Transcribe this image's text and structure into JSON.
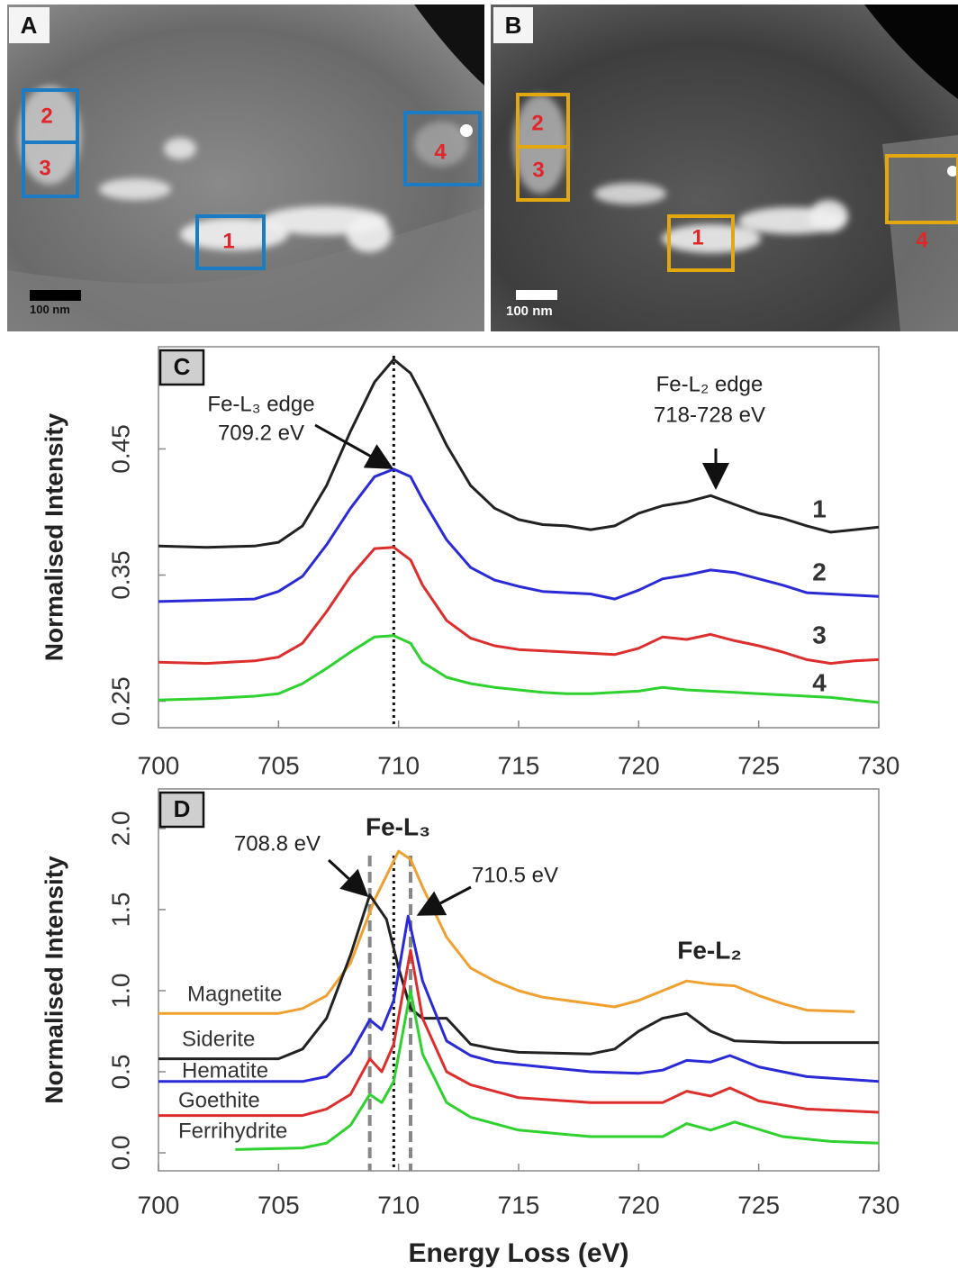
{
  "panels": [
    {
      "label": "A",
      "box_labels": [
        "2",
        "3",
        "4",
        "1"
      ],
      "scale_bar": "100 nm",
      "box_color": "#1b7cc4"
    },
    {
      "label": "B",
      "box_labels": [
        "2",
        "3",
        "4",
        "1"
      ],
      "scale_bar": "100 nm",
      "box_color": "#e3a70f"
    }
  ],
  "chart_data": [
    {
      "type": "line",
      "panel": "C",
      "ylabel": "Normalised Intensity",
      "x": [
        700,
        702,
        704,
        705,
        706,
        707,
        708,
        709,
        709.8,
        710.5,
        711,
        712,
        713,
        714,
        715,
        716,
        717,
        718,
        719,
        720,
        721,
        722,
        723,
        724,
        725,
        726,
        727,
        728,
        729,
        730
      ],
      "series": [
        {
          "name": "1",
          "color": "#222222",
          "values": [
            0.373,
            0.372,
            0.373,
            0.376,
            0.389,
            0.421,
            0.464,
            0.503,
            0.521,
            0.51,
            0.492,
            0.453,
            0.421,
            0.403,
            0.394,
            0.39,
            0.389,
            0.386,
            0.389,
            0.399,
            0.405,
            0.408,
            0.413,
            0.406,
            0.399,
            0.395,
            0.389,
            0.384,
            0.386,
            0.388
          ]
        },
        {
          "name": "2",
          "color": "#2a2ad6",
          "values": [
            0.329,
            0.33,
            0.331,
            0.337,
            0.349,
            0.374,
            0.403,
            0.428,
            0.434,
            0.428,
            0.41,
            0.378,
            0.356,
            0.346,
            0.341,
            0.337,
            0.336,
            0.335,
            0.331,
            0.338,
            0.347,
            0.35,
            0.354,
            0.352,
            0.347,
            0.342,
            0.336,
            0.335,
            0.334,
            0.333
          ]
        },
        {
          "name": "3",
          "color": "#dd2e2e",
          "values": [
            0.281,
            0.28,
            0.282,
            0.285,
            0.296,
            0.321,
            0.349,
            0.371,
            0.372,
            0.362,
            0.342,
            0.314,
            0.3,
            0.294,
            0.291,
            0.29,
            0.289,
            0.288,
            0.287,
            0.292,
            0.301,
            0.299,
            0.303,
            0.298,
            0.294,
            0.289,
            0.283,
            0.28,
            0.282,
            0.283
          ]
        },
        {
          "name": "4",
          "color": "#2ed12e",
          "values": [
            0.251,
            0.252,
            0.254,
            0.256,
            0.264,
            0.276,
            0.289,
            0.301,
            0.302,
            0.296,
            0.281,
            0.269,
            0.264,
            0.261,
            0.259,
            0.257,
            0.256,
            0.256,
            0.257,
            0.258,
            0.261,
            0.259,
            0.258,
            0.257,
            0.256,
            0.255,
            0.254,
            0.253,
            0.251,
            0.249
          ]
        }
      ],
      "xlim": [
        700,
        730
      ],
      "ylim": [
        0.229,
        0.531
      ],
      "xticks": [
        700,
        705,
        710,
        715,
        720,
        725,
        730
      ],
      "yticks": [
        0.25,
        0.35,
        0.45
      ],
      "annotations": [
        "Fe-L₃ edge",
        "709.2  eV",
        "Fe-L₂ edge",
        "718-728  eV"
      ],
      "reference_lines": [
        {
          "value": 709.8,
          "style": "dotted"
        }
      ]
    },
    {
      "type": "line",
      "panel": "D",
      "ylabel": "Normalised Intensity",
      "xlabel": "Energy Loss (eV)",
      "series": [
        {
          "name": "Magnetite",
          "color": "#f0a030",
          "x": [
            700,
            705,
            706,
            707,
            708,
            709,
            710,
            710.5,
            711,
            712,
            713,
            714,
            715,
            716,
            718,
            719,
            720,
            721,
            722,
            723,
            724,
            725,
            726,
            727,
            729
          ],
          "values": [
            0.86,
            0.86,
            0.89,
            0.97,
            1.17,
            1.56,
            1.86,
            1.81,
            1.64,
            1.33,
            1.14,
            1.06,
            1.0,
            0.96,
            0.92,
            0.9,
            0.94,
            1.0,
            1.06,
            1.04,
            1.03,
            0.97,
            0.92,
            0.88,
            0.87
          ]
        },
        {
          "name": "Siderite",
          "color": "#222222",
          "x": [
            700,
            705,
            706,
            707,
            708,
            708.8,
            709.5,
            710,
            710.5,
            711,
            712,
            713,
            714,
            715,
            718,
            719,
            720,
            721,
            722,
            723,
            724,
            726,
            728,
            730
          ],
          "values": [
            0.58,
            0.58,
            0.64,
            0.83,
            1.22,
            1.59,
            1.44,
            1.14,
            0.89,
            0.83,
            0.83,
            0.67,
            0.64,
            0.62,
            0.61,
            0.64,
            0.75,
            0.83,
            0.86,
            0.75,
            0.69,
            0.68,
            0.68,
            0.68
          ]
        },
        {
          "name": "Hematite",
          "color": "#2a2ad6",
          "x": [
            700,
            706,
            707,
            708,
            708.8,
            709.3,
            709.8,
            710.4,
            711,
            712,
            713,
            714,
            716,
            718,
            720,
            721,
            722,
            723,
            723.8,
            725,
            727,
            730
          ],
          "values": [
            0.44,
            0.44,
            0.47,
            0.61,
            0.82,
            0.76,
            0.94,
            1.46,
            1.06,
            0.69,
            0.6,
            0.56,
            0.53,
            0.5,
            0.49,
            0.51,
            0.57,
            0.56,
            0.6,
            0.53,
            0.47,
            0.44
          ]
        },
        {
          "name": "Goethite",
          "color": "#dd2e2e",
          "x": [
            700,
            706,
            707,
            708,
            708.8,
            709.3,
            709.8,
            710.5,
            711,
            712,
            713,
            715,
            718,
            721,
            722,
            723,
            723.8,
            725,
            727,
            730
          ],
          "values": [
            0.23,
            0.23,
            0.27,
            0.36,
            0.58,
            0.5,
            0.67,
            1.25,
            0.83,
            0.5,
            0.42,
            0.34,
            0.31,
            0.31,
            0.38,
            0.35,
            0.4,
            0.32,
            0.27,
            0.25
          ]
        },
        {
          "name": "Ferrihydrite",
          "color": "#2ed12e",
          "x": [
            703.2,
            706,
            707,
            708,
            708.8,
            709.3,
            709.8,
            710.5,
            711,
            712,
            713,
            715,
            718,
            721,
            722,
            723,
            724,
            726,
            728,
            730
          ],
          "values": [
            0.02,
            0.03,
            0.06,
            0.17,
            0.36,
            0.31,
            0.44,
            1.0,
            0.61,
            0.31,
            0.22,
            0.14,
            0.1,
            0.1,
            0.18,
            0.14,
            0.19,
            0.1,
            0.07,
            0.06
          ]
        }
      ],
      "xlim": [
        700,
        730
      ],
      "ylim": [
        -0.111,
        2.244
      ],
      "xticks": [
        700,
        705,
        710,
        715,
        720,
        725,
        730
      ],
      "yticks": [
        {
          "value": 0,
          "label": "0.0"
        },
        0.5,
        {
          "value": 1,
          "label": "1.0"
        },
        1.5,
        {
          "value": 2,
          "label": "2.0"
        }
      ],
      "annotations": [
        "708.8 eV",
        "Fe-L₃",
        "710.5 eV",
        "Fe-L₂"
      ],
      "reference_lines": [
        {
          "value": 708.8,
          "style": "dashed"
        },
        {
          "value": 709.8,
          "style": "dotted"
        },
        {
          "value": 710.5,
          "style": "dashed"
        }
      ]
    }
  ]
}
